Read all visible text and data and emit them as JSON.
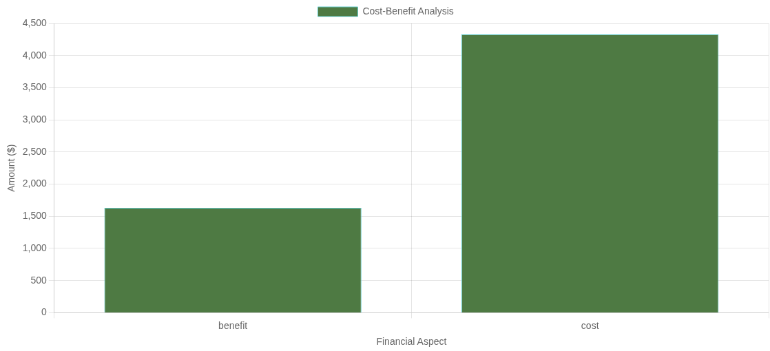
{
  "chart_data": {
    "type": "bar",
    "xlabel": "Financial Aspect",
    "ylabel": "Amount ($)",
    "categories": [
      "benefit",
      "cost"
    ],
    "series": [
      {
        "name": "Cost-Benefit Analysis",
        "color": "#4e7a43",
        "values": [
          1630,
          4330
        ]
      }
    ],
    "ylim": [
      0,
      4500
    ],
    "yticks": [
      0,
      500,
      {
        "value": 1000,
        "label": "1,000"
      },
      {
        "value": 1500,
        "label": "1,500"
      },
      {
        "value": 2000,
        "label": "2,000"
      },
      {
        "value": 2500,
        "label": "2,500"
      },
      {
        "value": 3000,
        "label": "3,000"
      },
      {
        "value": 3500,
        "label": "3,500"
      },
      {
        "value": 4000,
        "label": "4,000"
      },
      {
        "value": 4500,
        "label": "4,500"
      }
    ],
    "grid": true,
    "legend": "top"
  }
}
